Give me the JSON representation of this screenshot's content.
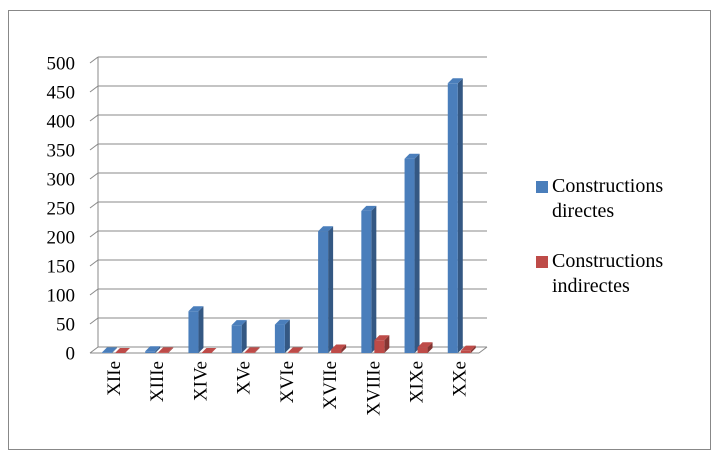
{
  "chart_data": {
    "type": "bar3d",
    "categories": [
      "XIIe",
      "XIIIe",
      "XIVe",
      "XVe",
      "XVIe",
      "XVIIe",
      "XVIIIe",
      "XIXe",
      "XXe"
    ],
    "series": [
      {
        "name": "Constructions directes",
        "color": "#4a7ebb",
        "values": [
          1,
          3,
          72,
          48,
          49,
          210,
          245,
          335,
          465
        ]
      },
      {
        "name": "Constructions indirectes",
        "color": "#be4b48",
        "values": [
          0,
          1,
          0,
          1,
          1,
          6,
          22,
          10,
          4
        ]
      }
    ],
    "ylim": [
      0,
      500
    ],
    "yticks": [
      0,
      50,
      100,
      150,
      200,
      250,
      300,
      350,
      400,
      450,
      500
    ],
    "grid": true,
    "legend": "right"
  }
}
